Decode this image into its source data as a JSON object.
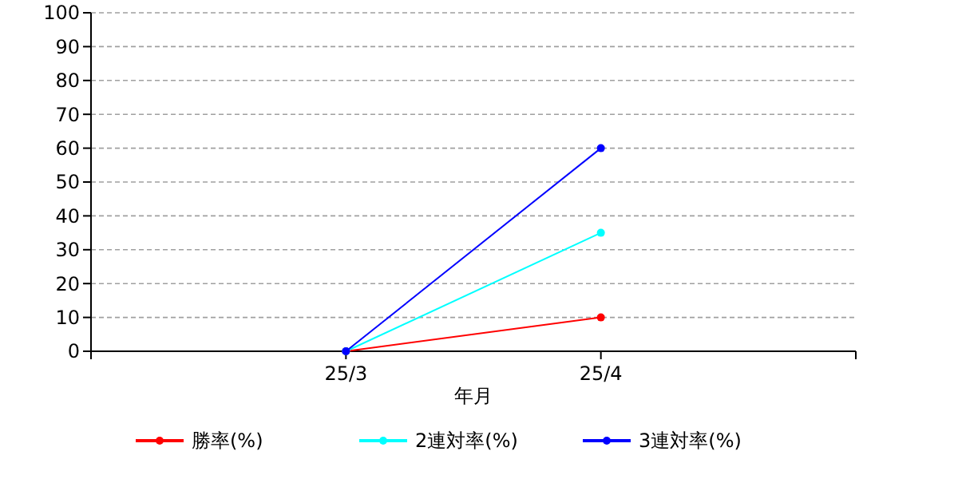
{
  "chart_data": {
    "type": "line",
    "xlabel": "年月",
    "categories": [
      null,
      "25/3",
      "25/4",
      null
    ],
    "series": [
      {
        "name": "勝率(%)",
        "color": "#ff0000",
        "values": [
          null,
          0,
          10,
          null
        ]
      },
      {
        "name": "2連対率(%)",
        "color": "#00ffff",
        "values": [
          null,
          0,
          35,
          null
        ]
      },
      {
        "name": "3連対率(%)",
        "color": "#0000ff",
        "values": [
          null,
          0,
          60,
          null
        ]
      }
    ],
    "ylim": [
      0,
      100
    ],
    "yticks": [
      0,
      10,
      20,
      30,
      40,
      50,
      60,
      70,
      80,
      90,
      100
    ],
    "grid": "y",
    "legend": "bottom",
    "marker": "circle",
    "line_style": "solid"
  }
}
